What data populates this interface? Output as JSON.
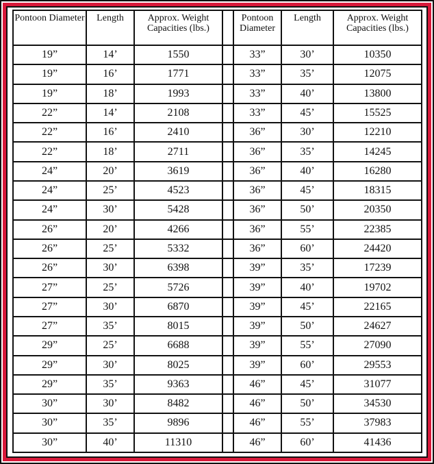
{
  "headers": {
    "diameter": "Pontoon Diameter",
    "length": "Length",
    "capacity": "Approx. Weight Capacities (lbs.)"
  },
  "left": [
    [
      "19”",
      "14’",
      "1550"
    ],
    [
      "19”",
      "16’",
      "1771"
    ],
    [
      "19”",
      "18’",
      "1993"
    ],
    [
      "22”",
      "14’",
      "2108"
    ],
    [
      "22”",
      "16’",
      "2410"
    ],
    [
      "22”",
      "18’",
      "2711"
    ],
    [
      "24”",
      "20’",
      "3619"
    ],
    [
      "24”",
      "25’",
      "4523"
    ],
    [
      "24”",
      "30’",
      "5428"
    ],
    [
      "26”",
      "20’",
      "4266"
    ],
    [
      "26”",
      "25’",
      "5332"
    ],
    [
      "26”",
      "30’",
      "6398"
    ],
    [
      "27”",
      "25’",
      "5726"
    ],
    [
      "27”",
      "30’",
      "6870"
    ],
    [
      "27”",
      "35’",
      "8015"
    ],
    [
      "29”",
      "25’",
      "6688"
    ],
    [
      "29”",
      "30’",
      "8025"
    ],
    [
      "29”",
      "35’",
      "9363"
    ],
    [
      "30”",
      "30’",
      "8482"
    ],
    [
      "30”",
      "35’",
      "9896"
    ],
    [
      "30”",
      "40’",
      "11310"
    ]
  ],
  "right": [
    [
      "33”",
      "30’",
      "10350"
    ],
    [
      "33”",
      "35’",
      "12075"
    ],
    [
      "33”",
      "40’",
      "13800"
    ],
    [
      "33”",
      "45’",
      "15525"
    ],
    [
      "36”",
      "30’",
      "12210"
    ],
    [
      "36”",
      "35’",
      "14245"
    ],
    [
      "36”",
      "40’",
      "16280"
    ],
    [
      "36”",
      "45’",
      "18315"
    ],
    [
      "36”",
      "50’",
      "20350"
    ],
    [
      "36”",
      "55’",
      "22385"
    ],
    [
      "36”",
      "60’",
      "24420"
    ],
    [
      "39”",
      "35’",
      "17239"
    ],
    [
      "39”",
      "40’",
      "19702"
    ],
    [
      "39”",
      "45’",
      "22165"
    ],
    [
      "39”",
      "50’",
      "24627"
    ],
    [
      "39”",
      "55’",
      "27090"
    ],
    [
      "39”",
      "60’",
      "29553"
    ],
    [
      "46”",
      "45’",
      "31077"
    ],
    [
      "46”",
      "50’",
      "34530"
    ],
    [
      "46”",
      "55’",
      "37983"
    ],
    [
      "46”",
      "60’",
      "41436"
    ]
  ],
  "colors": {
    "border_red": "#d8193a",
    "border_black": "#111111"
  }
}
